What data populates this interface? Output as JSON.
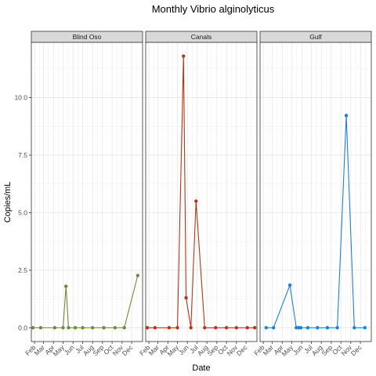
{
  "chart_data": {
    "type": "line",
    "title": "Monthly Vibrio alginolyticus",
    "xlabel": "Date",
    "ylabel": "Copies/mL",
    "ylim": [
      -0.6,
      12.4
    ],
    "y_ticks": [
      0.0,
      2.5,
      5.0,
      7.5,
      10.0
    ],
    "y_tick_labels": [
      "0.0",
      "2.5",
      "5.0",
      "7.5",
      "10.0"
    ],
    "x_tick_labels": [
      "Feb",
      "Mar",
      "Apr",
      "May",
      "Jun",
      "Jul",
      "Aug",
      "Sep",
      "Oct",
      "Nov",
      "Dec"
    ],
    "grid": true,
    "facets": [
      {
        "name": "Blind Oso",
        "color": "#6e8b3d",
        "points": [
          {
            "x": "2021-01-27",
            "y": 0.0
          },
          {
            "x": "2021-02-20",
            "y": 0.0
          },
          {
            "x": "2021-04-05",
            "y": 0.0
          },
          {
            "x": "2021-05-01",
            "y": 0.0
          },
          {
            "x": "2021-05-10",
            "y": 1.8
          },
          {
            "x": "2021-05-18",
            "y": 0.0
          },
          {
            "x": "2021-06-08",
            "y": 0.0
          },
          {
            "x": "2021-07-01",
            "y": 0.0
          },
          {
            "x": "2021-08-01",
            "y": 0.0
          },
          {
            "x": "2021-09-05",
            "y": 0.0
          },
          {
            "x": "2021-10-10",
            "y": 0.0
          },
          {
            "x": "2021-11-08",
            "y": 0.0
          },
          {
            "x": "2021-12-20",
            "y": 2.27
          }
        ]
      },
      {
        "name": "Canals",
        "color": "#b5341a",
        "points": [
          {
            "x": "2021-01-27",
            "y": 0.0
          },
          {
            "x": "2021-02-20",
            "y": 0.0
          },
          {
            "x": "2021-04-05",
            "y": 0.0
          },
          {
            "x": "2021-05-01",
            "y": 0.0
          },
          {
            "x": "2021-05-20",
            "y": 11.8
          },
          {
            "x": "2021-05-28",
            "y": 1.3
          },
          {
            "x": "2021-06-12",
            "y": 0.0
          },
          {
            "x": "2021-06-28",
            "y": 5.5
          },
          {
            "x": "2021-07-25",
            "y": 0.0
          },
          {
            "x": "2021-08-28",
            "y": 0.0
          },
          {
            "x": "2021-10-01",
            "y": 0.0
          },
          {
            "x": "2021-11-01",
            "y": 0.0
          },
          {
            "x": "2021-12-05",
            "y": 0.0
          },
          {
            "x": "2021-12-28",
            "y": 0.0
          }
        ]
      },
      {
        "name": "Gulf",
        "color": "#1f7fd6",
        "points": [
          {
            "x": "2021-02-10",
            "y": 0.0
          },
          {
            "x": "2021-03-05",
            "y": 0.0
          },
          {
            "x": "2021-04-25",
            "y": 1.85
          },
          {
            "x": "2021-05-15",
            "y": 0.0
          },
          {
            "x": "2021-05-22",
            "y": 0.0
          },
          {
            "x": "2021-05-29",
            "y": 0.0
          },
          {
            "x": "2021-06-20",
            "y": 0.0
          },
          {
            "x": "2021-07-20",
            "y": 0.0
          },
          {
            "x": "2021-08-20",
            "y": 0.0
          },
          {
            "x": "2021-09-20",
            "y": 0.0
          },
          {
            "x": "2021-10-18",
            "y": 9.22
          },
          {
            "x": "2021-11-12",
            "y": 0.0
          },
          {
            "x": "2021-12-15",
            "y": 0.0
          }
        ]
      }
    ]
  }
}
